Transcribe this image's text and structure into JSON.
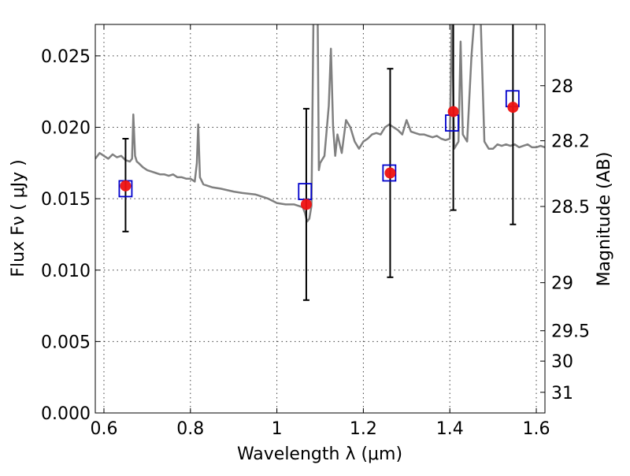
{
  "chart_data": {
    "type": "line",
    "title": "",
    "xlabel": "Wavelength  λ (μm)",
    "ylabel": "Flux  Fν  ( μJy )",
    "y2label": "Magnitude (AB)",
    "xlim": [
      0.58,
      1.62
    ],
    "ylim": [
      0.0,
      0.0272
    ],
    "grid": true,
    "x_ticks": [
      0.6,
      0.8,
      1.0,
      1.2,
      1.4,
      1.6
    ],
    "x_tick_labels": [
      "0.6",
      "0.8",
      "1",
      "1.2",
      "1.4",
      "1.6"
    ],
    "y_ticks": [
      0.0,
      0.005,
      0.01,
      0.015,
      0.02,
      0.025
    ],
    "y_tick_labels": [
      "0.000",
      "0.005",
      "0.010",
      "0.015",
      "0.020",
      "0.025"
    ],
    "y2_ticks": [
      28,
      28.2,
      28.5,
      29,
      29.5,
      30,
      31
    ],
    "y2_tick_labels": [
      "28",
      "28.2",
      "28.5",
      "29",
      "29.5",
      "30",
      "31"
    ],
    "colors": {
      "model": "#808080",
      "model_boxes": "#0000cc",
      "observed": "#ee1111",
      "errorbar": "#000000"
    },
    "series": [
      {
        "kind": "model_spectrum",
        "x": [
          0.58,
          0.59,
          0.6,
          0.61,
          0.62,
          0.63,
          0.64,
          0.65,
          0.66,
          0.665,
          0.668,
          0.672,
          0.676,
          0.68,
          0.69,
          0.7,
          0.71,
          0.72,
          0.73,
          0.74,
          0.75,
          0.76,
          0.77,
          0.78,
          0.79,
          0.8,
          0.81,
          0.815,
          0.818,
          0.822,
          0.83,
          0.85,
          0.87,
          0.9,
          0.92,
          0.95,
          0.98,
          1.0,
          1.02,
          1.04,
          1.05,
          1.06,
          1.065,
          1.07,
          1.075,
          1.08,
          1.085,
          1.088,
          1.091,
          1.094,
          1.097,
          1.1,
          1.11,
          1.12,
          1.125,
          1.13,
          1.135,
          1.14,
          1.15,
          1.16,
          1.17,
          1.18,
          1.19,
          1.2,
          1.21,
          1.22,
          1.23,
          1.24,
          1.25,
          1.26,
          1.27,
          1.28,
          1.29,
          1.3,
          1.31,
          1.32,
          1.33,
          1.34,
          1.35,
          1.36,
          1.37,
          1.38,
          1.39,
          1.4,
          1.405,
          1.41,
          1.42,
          1.425,
          1.43,
          1.44,
          1.45,
          1.46,
          1.47,
          1.48,
          1.49,
          1.5,
          1.51,
          1.52,
          1.53,
          1.54,
          1.55,
          1.56,
          1.57,
          1.58,
          1.59,
          1.6,
          1.61,
          1.62
        ],
        "y": [
          0.0178,
          0.0182,
          0.018,
          0.0178,
          0.0181,
          0.0179,
          0.018,
          0.0177,
          0.0176,
          0.0178,
          0.0209,
          0.018,
          0.0176,
          0.0175,
          0.0172,
          0.017,
          0.0169,
          0.0168,
          0.0167,
          0.0167,
          0.0166,
          0.0167,
          0.0165,
          0.0165,
          0.0164,
          0.0164,
          0.0162,
          0.0175,
          0.0202,
          0.0165,
          0.016,
          0.0158,
          0.0157,
          0.0155,
          0.0154,
          0.0153,
          0.015,
          0.0147,
          0.0146,
          0.0146,
          0.0145,
          0.0144,
          0.014,
          0.0134,
          0.0136,
          0.0145,
          0.029,
          0.029,
          0.029,
          0.029,
          0.017,
          0.0175,
          0.018,
          0.0215,
          0.0255,
          0.02,
          0.018,
          0.0195,
          0.0182,
          0.0205,
          0.02,
          0.019,
          0.0185,
          0.019,
          0.0192,
          0.0195,
          0.0196,
          0.0195,
          0.02,
          0.0202,
          0.02,
          0.0198,
          0.0195,
          0.0205,
          0.0197,
          0.0196,
          0.0195,
          0.0195,
          0.0194,
          0.0193,
          0.0194,
          0.0192,
          0.0191,
          0.0192,
          0.0282,
          0.0185,
          0.019,
          0.026,
          0.0195,
          0.019,
          0.025,
          0.029,
          0.029,
          0.019,
          0.0185,
          0.0185,
          0.0188,
          0.0187,
          0.0188,
          0.0187,
          0.0188,
          0.0186,
          0.0187,
          0.0188,
          0.0186,
          0.0186,
          0.0187,
          0.0186
        ]
      },
      {
        "kind": "model_band_fluxes",
        "x": [
          0.65,
          1.065,
          1.26,
          1.405,
          1.545
        ],
        "y": [
          0.0157,
          0.0155,
          0.0168,
          0.0203,
          0.022
        ]
      },
      {
        "kind": "observed_fluxes",
        "x": [
          0.65,
          1.068,
          1.262,
          1.408,
          1.546
        ],
        "y": [
          0.0159,
          0.0146,
          0.0168,
          0.0211,
          0.0214
        ],
        "yerr_low": [
          0.0127,
          0.0079,
          0.0095,
          0.0142,
          0.0132
        ],
        "yerr_high": [
          0.0192,
          0.0213,
          0.0241,
          0.0282,
          0.0282
        ]
      }
    ]
  }
}
